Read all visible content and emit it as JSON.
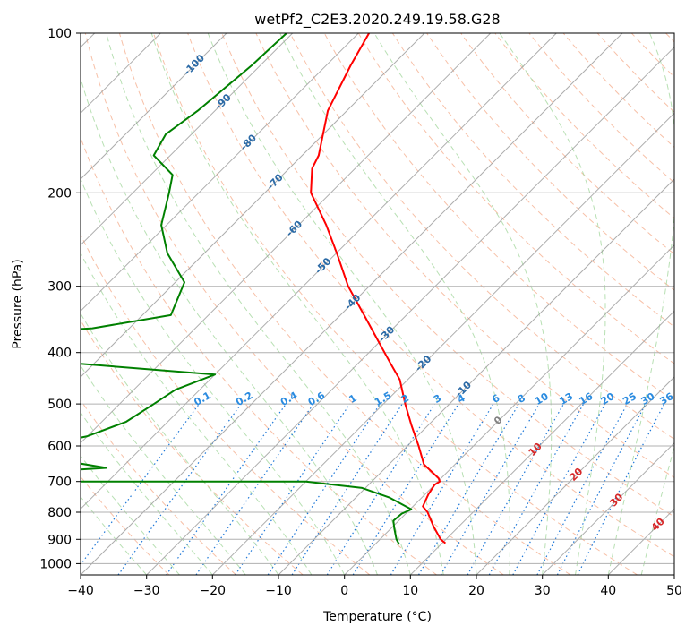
{
  "chart_data": {
    "type": "skew-t",
    "title": "wetPf2_C2E3.2020.249.19.58.G28",
    "xlabel": "Temperature (°C)",
    "ylabel": "Pressure (hPa)",
    "xlim": [
      -40,
      50
    ],
    "ylim": [
      1050,
      100
    ],
    "y_scale": "log",
    "grid": true,
    "x_ticks": [
      -40,
      -30,
      -20,
      -10,
      0,
      10,
      20,
      30,
      40,
      50
    ],
    "y_ticks": [
      100,
      200,
      300,
      400,
      500,
      600,
      700,
      800,
      900,
      1000
    ],
    "colors": {
      "temperature": "#ff0000",
      "dewpoint": "#008000",
      "dry_adiabat": "#f4a582",
      "moist_adiabat": "#a6d8a0",
      "mixing_ratio": "#1f78d8",
      "isotherm": "#999999",
      "isotherm_label_cold": "#2b6aa6",
      "isotherm_label_zero": "#808080",
      "isotherm_label_warm": "#d62728",
      "mixing_label": "#2a8be0"
    },
    "series": [
      {
        "key": "temperature",
        "points": [
          [
            100,
            -78.4
          ],
          [
            115,
            -76.3
          ],
          [
            140,
            -72.9
          ],
          [
            170,
            -67.5
          ],
          [
            180,
            -66.5
          ],
          [
            200,
            -63
          ],
          [
            230,
            -55.8
          ],
          [
            260,
            -49.9
          ],
          [
            300,
            -43.2
          ],
          [
            340,
            -36.4
          ],
          [
            380,
            -30.4
          ],
          [
            420,
            -25
          ],
          [
            450,
            -21.2
          ],
          [
            500,
            -16.7
          ],
          [
            550,
            -12.4
          ],
          [
            600,
            -8.3
          ],
          [
            650,
            -4.7
          ],
          [
            690,
            -0.4
          ],
          [
            700,
            0.3
          ],
          [
            710,
            0
          ],
          [
            740,
            0.5
          ],
          [
            780,
            1.5
          ],
          [
            800,
            3.1
          ],
          [
            850,
            6.1
          ],
          [
            900,
            9.2
          ],
          [
            915,
            10.5
          ]
        ]
      },
      {
        "key": "dewpoint",
        "points": [
          [
            100,
            -90.9
          ],
          [
            115,
            -91.3
          ],
          [
            140,
            -92.6
          ],
          [
            155,
            -93.9
          ],
          [
            170,
            -92.5
          ],
          [
            185,
            -86.7
          ],
          [
            200,
            -84.5
          ],
          [
            230,
            -80.8
          ],
          [
            260,
            -75.6
          ],
          [
            295,
            -68.6
          ],
          [
            340,
            -65.7
          ],
          [
            360,
            -75.6
          ],
          [
            365,
            -82.6
          ],
          [
            380,
            -81.1
          ],
          [
            395,
            -84.1
          ],
          [
            405,
            -92.6
          ],
          [
            410,
            -83.6
          ],
          [
            440,
            -50
          ],
          [
            470,
            -53.7
          ],
          [
            500,
            -54.8
          ],
          [
            540,
            -56.3
          ],
          [
            575,
            -60
          ],
          [
            600,
            -65.6
          ],
          [
            640,
            -59.8
          ],
          [
            660,
            -52.3
          ],
          [
            680,
            -68
          ],
          [
            700,
            -79.5
          ],
          [
            700,
            -20
          ],
          [
            720,
            -10.5
          ],
          [
            750,
            -5
          ],
          [
            790,
            0.2
          ],
          [
            805,
            -0.6
          ],
          [
            830,
            -0.8
          ],
          [
            860,
            0.6
          ],
          [
            900,
            2.5
          ],
          [
            920,
            3.7
          ]
        ]
      }
    ],
    "isotherm_labels": [
      "-100",
      "-90",
      "-80",
      "-70",
      "-60",
      "-50",
      "-40",
      "-30",
      "-20",
      "-10",
      "0",
      "10",
      "20",
      "30",
      "40"
    ],
    "mixing_ratio_labels": [
      "0.1",
      "0.2",
      "0.4",
      "0.6",
      "1",
      "1.5",
      "2",
      "3",
      "4",
      "6",
      "8",
      "10",
      "13",
      "16",
      "20",
      "25",
      "30",
      "36"
    ]
  }
}
